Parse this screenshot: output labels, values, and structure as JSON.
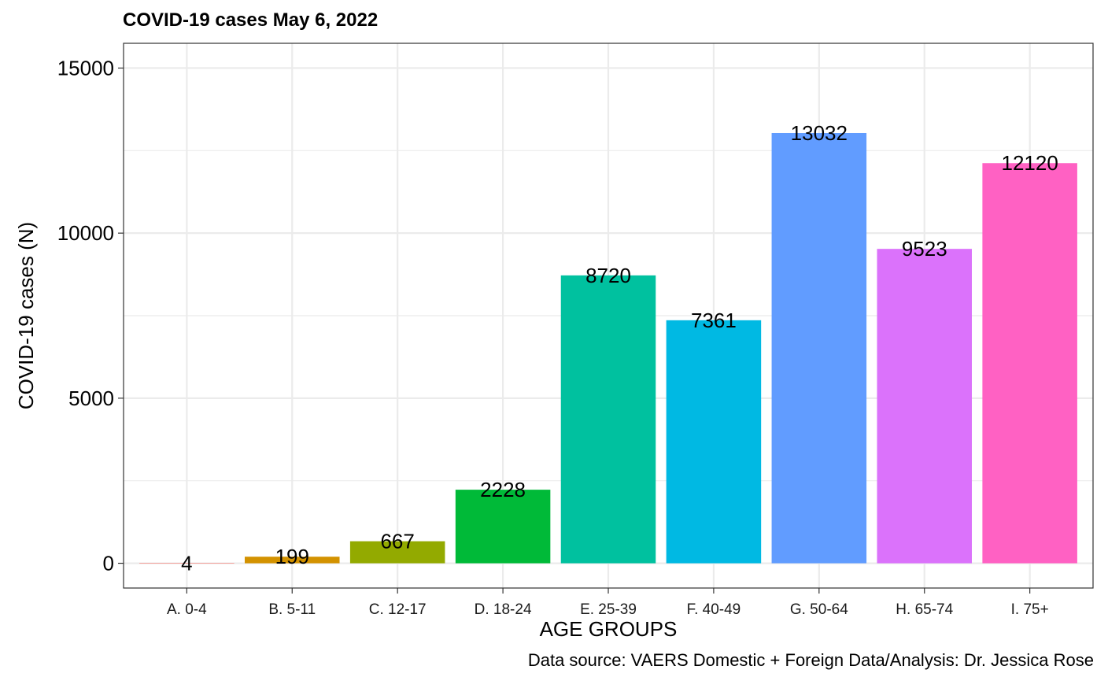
{
  "chart_data": {
    "type": "bar",
    "title": "COVID-19 cases May 6, 2022",
    "xlabel": "AGE GROUPS",
    "ylabel": "COVID-19 cases (N)",
    "caption": "Data source: VAERS Domestic + Foreign Data/Analysis: Dr. Jessica Rose",
    "categories": [
      "A. 0-4",
      "B. 5-11",
      "C. 12-17",
      "D. 18-24",
      "E. 25-39",
      "F. 40-49",
      "G. 50-64",
      "H. 65-74",
      "I. 75+"
    ],
    "values": [
      4,
      199,
      667,
      2228,
      8720,
      7361,
      13032,
      9523,
      12120
    ],
    "data_labels": [
      "4",
      "199",
      "667",
      "2228",
      "8720",
      "7361",
      "13032",
      "9523",
      "12120"
    ],
    "colors": [
      "#F8766D",
      "#D39200",
      "#93AA00",
      "#00BA38",
      "#00C19F",
      "#00B9E3",
      "#619CFF",
      "#DB72FB",
      "#FF61C3"
    ],
    "yticks": [
      0,
      5000,
      10000,
      15000
    ],
    "ytick_labels": [
      "0",
      "5000",
      "10000",
      "15000"
    ],
    "ylim": [
      -750,
      15750
    ],
    "grid": true,
    "legend": "none"
  }
}
